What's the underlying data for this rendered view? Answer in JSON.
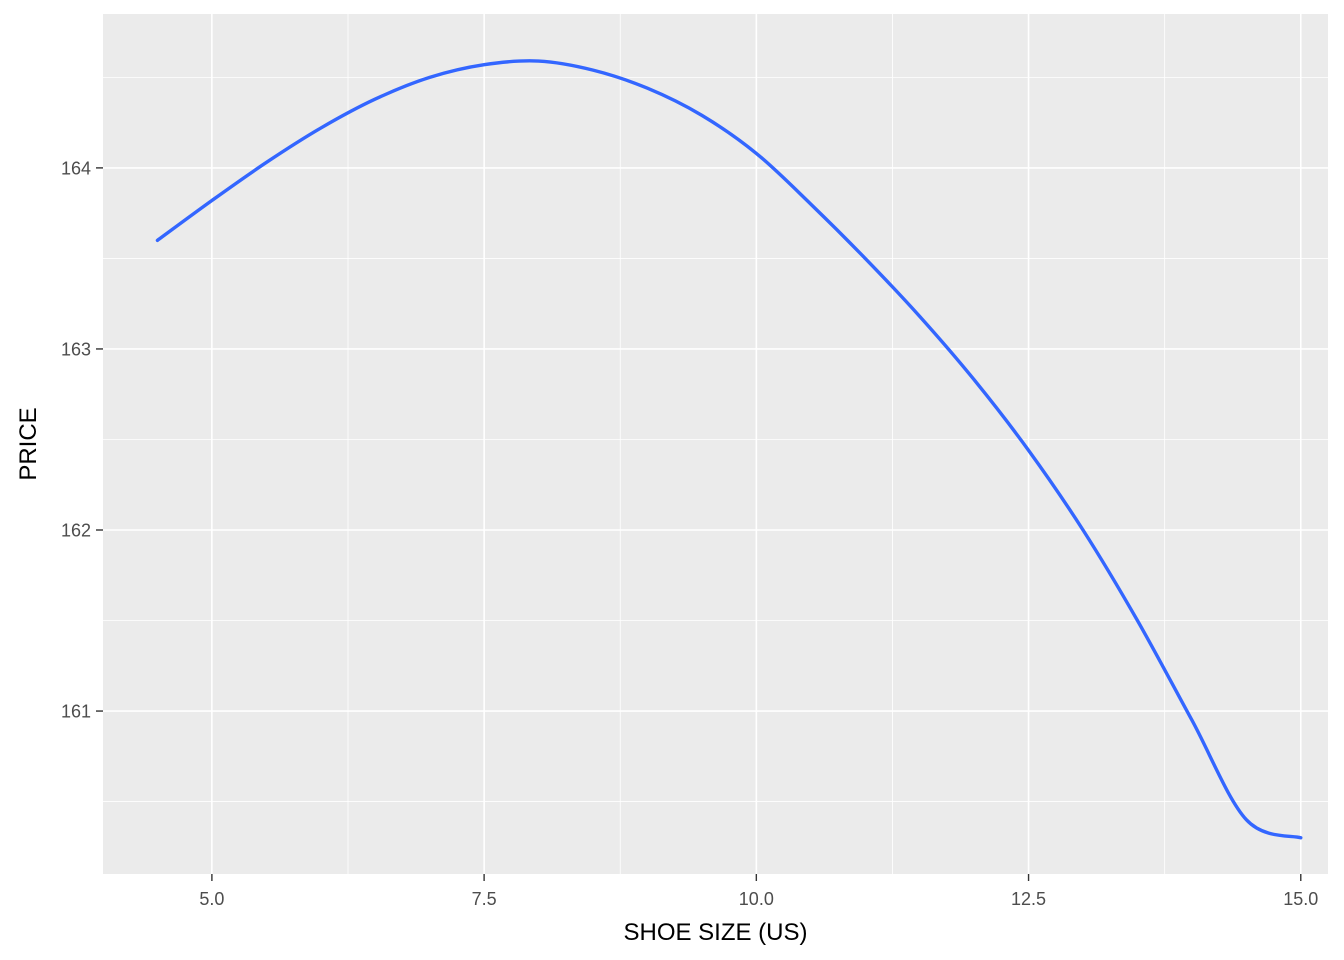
{
  "chart_data": {
    "type": "line",
    "title": "",
    "xlabel": "SHOE SIZE (US)",
    "ylabel": "PRICE",
    "xlim": [
      4.0,
      15.25
    ],
    "ylim": [
      160.1,
      164.85
    ],
    "x_ticks": [
      5.0,
      7.5,
      10.0,
      12.5,
      15.0
    ],
    "x_tick_labels": [
      "5.0",
      "7.5",
      "10.0",
      "12.5",
      "15.0"
    ],
    "y_ticks": [
      161,
      162,
      163,
      164
    ],
    "y_tick_labels": [
      "161",
      "162",
      "163",
      "164"
    ],
    "grid": true,
    "panel_background": "#EBEBEB",
    "line_color": "#3366FF",
    "series": [
      {
        "x": [
          4.5,
          5.0,
          5.5,
          6.0,
          6.5,
          7.0,
          7.5,
          8.0,
          8.5,
          9.0,
          9.5,
          10.0,
          10.5,
          11.0,
          11.5,
          12.0,
          12.5,
          13.0,
          13.5,
          14.0,
          14.5,
          15.0
        ],
        "y": [
          163.6,
          163.82,
          164.03,
          164.22,
          164.38,
          164.5,
          164.57,
          164.59,
          164.54,
          164.44,
          164.29,
          164.08,
          163.8,
          163.5,
          163.18,
          162.83,
          162.44,
          162.0,
          161.5,
          160.95,
          160.4,
          160.3
        ]
      }
    ]
  }
}
